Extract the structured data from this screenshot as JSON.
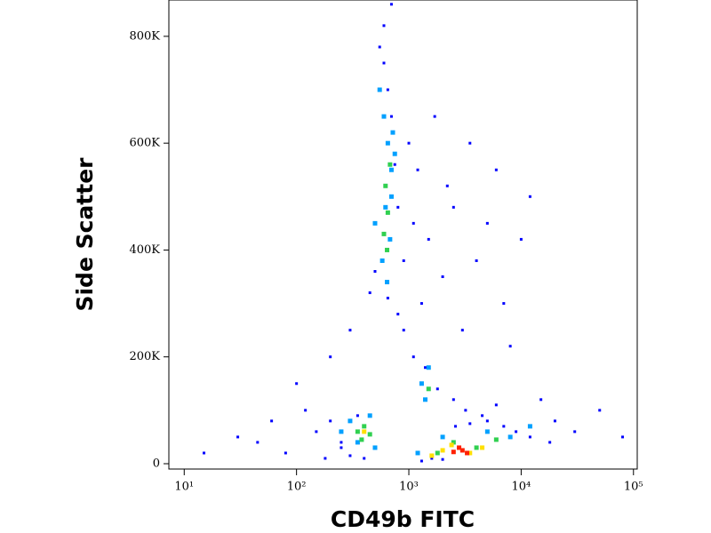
{
  "chart_data": {
    "type": "scatter",
    "x_label": "CD49b FITC",
    "y_label": "Side Scatter",
    "xscale": "log",
    "xlim": [
      7.3,
      108000
    ],
    "ylim": [
      -10000,
      868000
    ],
    "xticks": [
      {
        "value": 10,
        "label": "10¹"
      },
      {
        "value": 100,
        "label": "10²"
      },
      {
        "value": 1000,
        "label": "10³"
      },
      {
        "value": 10000,
        "label": "10⁴"
      },
      {
        "value": 100000,
        "label": "10⁵"
      }
    ],
    "yticks": [
      0,
      {
        "value": 200000,
        "label": "200K"
      },
      {
        "value": 400000,
        "label": "400K"
      },
      {
        "value": 600000,
        "label": "600K"
      },
      {
        "value": 800000,
        "label": "800K"
      }
    ],
    "series": [
      {
        "color": "#0000ff",
        "x": [
          15,
          30,
          45,
          60,
          80,
          100,
          120,
          150,
          200,
          250,
          300,
          350,
          450,
          550,
          600,
          650,
          700,
          750,
          800,
          900,
          1000,
          1100,
          1200,
          1300,
          1500,
          1700,
          2000,
          2200,
          2500,
          3000,
          3500,
          4000,
          5000,
          6000,
          7000,
          8000,
          10000,
          12000,
          15000,
          20000,
          30000,
          50000,
          80000,
          700,
          600,
          500,
          650,
          800,
          900,
          1100,
          1400,
          1800,
          2500,
          3200,
          4500,
          6000,
          300,
          400,
          250,
          180,
          200,
          1300,
          1600,
          2000,
          2600,
          3500,
          5000,
          7000,
          9000,
          12000,
          18000
        ],
        "values": [
          20000,
          50000,
          40000,
          80000,
          20000,
          150000,
          100000,
          60000,
          200000,
          30000,
          250000,
          90000,
          320000,
          780000,
          820000,
          700000,
          650000,
          560000,
          480000,
          380000,
          600000,
          450000,
          550000,
          300000,
          420000,
          650000,
          350000,
          520000,
          480000,
          250000,
          600000,
          380000,
          450000,
          550000,
          300000,
          220000,
          420000,
          500000,
          120000,
          80000,
          60000,
          100000,
          50000,
          860000,
          750000,
          360000,
          310000,
          280000,
          250000,
          200000,
          180000,
          140000,
          120000,
          100000,
          90000,
          110000,
          15000,
          10000,
          40000,
          10000,
          80000,
          5000,
          10000,
          8000,
          70000,
          75000,
          80000,
          70000,
          60000,
          50000,
          40000
        ]
      },
      {
        "color": "#00a0ff",
        "x": [
          550,
          600,
          650,
          700,
          620,
          680,
          580,
          640,
          720,
          500,
          300,
          350,
          450,
          500,
          250,
          1300,
          1500,
          1400,
          1200,
          2000,
          5000,
          8000,
          12000,
          700,
          750
        ],
        "values": [
          700000,
          650000,
          600000,
          550000,
          480000,
          420000,
          380000,
          340000,
          620000,
          450000,
          80000,
          40000,
          90000,
          30000,
          60000,
          150000,
          180000,
          120000,
          20000,
          50000,
          60000,
          50000,
          70000,
          500000,
          580000
        ]
      },
      {
        "color": "#30d050",
        "x": [
          620,
          650,
          600,
          680,
          640,
          350,
          400,
          450,
          380,
          1500,
          1800,
          2500,
          4000,
          6000
        ],
        "values": [
          520000,
          470000,
          430000,
          560000,
          400000,
          60000,
          70000,
          55000,
          45000,
          140000,
          20000,
          40000,
          30000,
          45000
        ]
      },
      {
        "color": "#ffe000",
        "x": [
          400,
          2000,
          2400,
          3500,
          4500,
          1600
        ],
        "values": [
          60000,
          25000,
          35000,
          20000,
          30000,
          15000
        ]
      },
      {
        "color": "#ff2000",
        "x": [
          2500,
          3000,
          3300,
          2800
        ],
        "values": [
          22000,
          25000,
          20000,
          30000
        ]
      }
    ]
  }
}
